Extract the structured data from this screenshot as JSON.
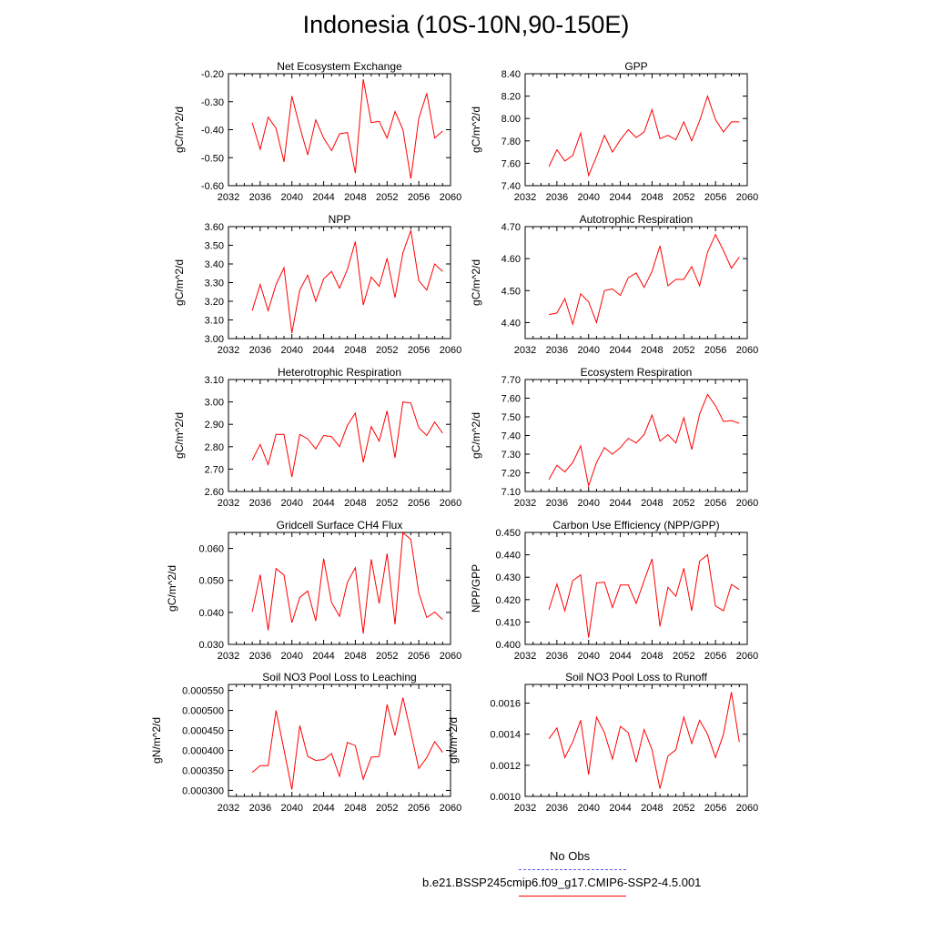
{
  "page": {
    "title": "Indonesia (10S-10N,90-150E)"
  },
  "legend": {
    "obs_label": "No Obs",
    "obs_color": "#5a5aff",
    "model_label": "b.e21.BSSP245cmip6.f09_g17.CMIP6-SSP2-4.5.001",
    "model_color": "#ff0000"
  },
  "chart_data": [
    {
      "type": "line",
      "title": "Net Ecosystem Exchange",
      "ylabel": "gC/m^2/d",
      "xlim": [
        2032,
        2060
      ],
      "ylim": [
        -0.6,
        -0.2
      ],
      "xticks": [
        "2032",
        "2036",
        "2040",
        "2044",
        "2048",
        "2052",
        "2056",
        "2060"
      ],
      "yticks": [
        "-0.60",
        "-0.50",
        "-0.40",
        "-0.30",
        "-0.20"
      ],
      "series": [
        {
          "color": "#ff0000",
          "x": [
            2035,
            2036,
            2037,
            2038,
            2039,
            2040,
            2041,
            2042,
            2043,
            2044,
            2045,
            2046,
            2047,
            2048,
            2049,
            2050,
            2051,
            2052,
            2053,
            2054,
            2055,
            2056,
            2057,
            2058,
            2059
          ],
          "values": [
            -0.375,
            -0.47,
            -0.355,
            -0.395,
            -0.515,
            -0.28,
            -0.39,
            -0.49,
            -0.365,
            -0.43,
            -0.475,
            -0.415,
            -0.41,
            -0.555,
            -0.22,
            -0.375,
            -0.37,
            -0.43,
            -0.335,
            -0.4,
            -0.575,
            -0.36,
            -0.27,
            -0.43,
            -0.405
          ]
        }
      ]
    },
    {
      "type": "line",
      "title": "GPP",
      "ylabel": "gC/m^2/d",
      "xlim": [
        2032,
        2060
      ],
      "ylim": [
        7.4,
        8.4
      ],
      "xticks": [
        "2032",
        "2036",
        "2040",
        "2044",
        "2048",
        "2052",
        "2056",
        "2060"
      ],
      "yticks": [
        "7.40",
        "7.60",
        "7.80",
        "8.00",
        "8.20",
        "8.40"
      ],
      "series": [
        {
          "color": "#ff0000",
          "x": [
            2035,
            2036,
            2037,
            2038,
            2039,
            2040,
            2041,
            2042,
            2043,
            2044,
            2045,
            2046,
            2047,
            2048,
            2049,
            2050,
            2051,
            2052,
            2053,
            2054,
            2055,
            2056,
            2057,
            2058,
            2059
          ],
          "values": [
            7.57,
            7.72,
            7.62,
            7.67,
            7.87,
            7.49,
            7.66,
            7.85,
            7.7,
            7.81,
            7.9,
            7.83,
            7.88,
            8.08,
            7.82,
            7.85,
            7.81,
            7.97,
            7.8,
            7.98,
            8.2,
            7.99,
            7.88,
            7.97,
            7.97
          ]
        }
      ]
    },
    {
      "type": "line",
      "title": "NPP",
      "ylabel": "gC/m^2/d",
      "xlim": [
        2032,
        2060
      ],
      "ylim": [
        3.0,
        3.6
      ],
      "xticks": [
        "2032",
        "2036",
        "2040",
        "2044",
        "2048",
        "2052",
        "2056",
        "2060"
      ],
      "yticks": [
        "3.00",
        "3.10",
        "3.20",
        "3.30",
        "3.40",
        "3.50",
        "3.60"
      ],
      "series": [
        {
          "color": "#ff0000",
          "x": [
            2035,
            2036,
            2037,
            2038,
            2039,
            2040,
            2041,
            2042,
            2043,
            2044,
            2045,
            2046,
            2047,
            2048,
            2049,
            2050,
            2051,
            2052,
            2053,
            2054,
            2055,
            2056,
            2057,
            2058,
            2059
          ],
          "values": [
            3.15,
            3.29,
            3.15,
            3.29,
            3.38,
            3.03,
            3.26,
            3.34,
            3.2,
            3.32,
            3.36,
            3.27,
            3.37,
            3.52,
            3.18,
            3.33,
            3.28,
            3.43,
            3.22,
            3.46,
            3.58,
            3.31,
            3.26,
            3.4,
            3.36
          ]
        }
      ]
    },
    {
      "type": "line",
      "title": "Autotrophic Respiration",
      "ylabel": "gC/m^2/d",
      "xlim": [
        2032,
        2060
      ],
      "ylim": [
        4.35,
        4.7
      ],
      "xticks": [
        "2032",
        "2036",
        "2040",
        "2044",
        "2048",
        "2052",
        "2056",
        "2060"
      ],
      "yticks": [
        "4.40",
        "4.50",
        "4.60",
        "4.70"
      ],
      "series": [
        {
          "color": "#ff0000",
          "x": [
            2035,
            2036,
            2037,
            2038,
            2039,
            2040,
            2041,
            2042,
            2043,
            2044,
            2045,
            2046,
            2047,
            2048,
            2049,
            2050,
            2051,
            2052,
            2053,
            2054,
            2055,
            2056,
            2057,
            2058,
            2059
          ],
          "values": [
            4.425,
            4.43,
            4.475,
            4.395,
            4.49,
            4.465,
            4.4,
            4.5,
            4.505,
            4.485,
            4.54,
            4.555,
            4.51,
            4.56,
            4.64,
            4.515,
            4.535,
            4.535,
            4.575,
            4.515,
            4.62,
            4.675,
            4.625,
            4.57,
            4.605
          ]
        }
      ]
    },
    {
      "type": "line",
      "title": "Heterotrophic Respiration",
      "ylabel": "gC/m^2/d",
      "xlim": [
        2032,
        2060
      ],
      "ylim": [
        2.6,
        3.1
      ],
      "xticks": [
        "2032",
        "2036",
        "2040",
        "2044",
        "2048",
        "2052",
        "2056",
        "2060"
      ],
      "yticks": [
        "2.60",
        "2.70",
        "2.80",
        "2.90",
        "3.00",
        "3.10"
      ],
      "series": [
        {
          "color": "#ff0000",
          "x": [
            2035,
            2036,
            2037,
            2038,
            2039,
            2040,
            2041,
            2042,
            2043,
            2044,
            2045,
            2046,
            2047,
            2048,
            2049,
            2050,
            2051,
            2052,
            2053,
            2054,
            2055,
            2056,
            2057,
            2058,
            2059
          ],
          "values": [
            2.74,
            2.81,
            2.72,
            2.855,
            2.855,
            2.665,
            2.855,
            2.835,
            2.79,
            2.85,
            2.845,
            2.8,
            2.895,
            2.95,
            2.73,
            2.89,
            2.825,
            2.96,
            2.75,
            3.0,
            2.995,
            2.885,
            2.85,
            2.91,
            2.86
          ]
        }
      ]
    },
    {
      "type": "line",
      "title": "Ecosystem Respiration",
      "ylabel": "gC/m^2/d",
      "xlim": [
        2032,
        2060
      ],
      "ylim": [
        7.1,
        7.7
      ],
      "xticks": [
        "2032",
        "2036",
        "2040",
        "2044",
        "2048",
        "2052",
        "2056",
        "2060"
      ],
      "yticks": [
        "7.10",
        "7.20",
        "7.30",
        "7.40",
        "7.50",
        "7.60",
        "7.70"
      ],
      "series": [
        {
          "color": "#ff0000",
          "x": [
            2035,
            2036,
            2037,
            2038,
            2039,
            2040,
            2041,
            2042,
            2043,
            2044,
            2045,
            2046,
            2047,
            2048,
            2049,
            2050,
            2051,
            2052,
            2053,
            2054,
            2055,
            2056,
            2057,
            2058,
            2059
          ],
          "values": [
            7.165,
            7.24,
            7.205,
            7.255,
            7.345,
            7.13,
            7.255,
            7.335,
            7.3,
            7.335,
            7.385,
            7.36,
            7.405,
            7.51,
            7.37,
            7.405,
            7.36,
            7.495,
            7.325,
            7.515,
            7.62,
            7.56,
            7.475,
            7.48,
            7.465
          ]
        }
      ]
    },
    {
      "type": "line",
      "title": "Gridcell Surface CH4 Flux",
      "ylabel": "gC/m^2/d",
      "xlim": [
        2032,
        2060
      ],
      "ylim": [
        0.03,
        0.065
      ],
      "xticks": [
        "2032",
        "2036",
        "2040",
        "2044",
        "2048",
        "2052",
        "2056",
        "2060"
      ],
      "yticks": [
        "0.030",
        "0.040",
        "0.050",
        "0.060"
      ],
      "series": [
        {
          "color": "#ff0000",
          "x": [
            2035,
            2036,
            2037,
            2038,
            2039,
            2040,
            2041,
            2042,
            2043,
            2044,
            2045,
            2046,
            2047,
            2048,
            2049,
            2050,
            2051,
            2052,
            2053,
            2054,
            2055,
            2056,
            2057,
            2058,
            2059
          ],
          "values": [
            0.0402,
            0.0518,
            0.0344,
            0.0537,
            0.0517,
            0.0368,
            0.0447,
            0.0467,
            0.0373,
            0.0568,
            0.0431,
            0.0388,
            0.0494,
            0.054,
            0.0334,
            0.0566,
            0.0428,
            0.0584,
            0.0363,
            0.065,
            0.0628,
            0.0461,
            0.0384,
            0.0401,
            0.0378
          ]
        }
      ]
    },
    {
      "type": "line",
      "title": "Carbon Use Efficiency (NPP/GPP)",
      "ylabel": "NPP/GPP",
      "xlim": [
        2032,
        2060
      ],
      "ylim": [
        0.4,
        0.45
      ],
      "xticks": [
        "2032",
        "2036",
        "2040",
        "2044",
        "2048",
        "2052",
        "2056",
        "2060"
      ],
      "yticks": [
        "0.400",
        "0.410",
        "0.420",
        "0.430",
        "0.440",
        "0.450"
      ],
      "series": [
        {
          "color": "#ff0000",
          "x": [
            2035,
            2036,
            2037,
            2038,
            2039,
            2040,
            2041,
            2042,
            2043,
            2044,
            2045,
            2046,
            2047,
            2048,
            2049,
            2050,
            2051,
            2052,
            2053,
            2054,
            2055,
            2056,
            2057,
            2058,
            2059
          ],
          "values": [
            0.4155,
            0.427,
            0.415,
            0.4285,
            0.431,
            0.403,
            0.4275,
            0.4278,
            0.4165,
            0.4265,
            0.4265,
            0.4183,
            0.4285,
            0.4382,
            0.408,
            0.4255,
            0.4215,
            0.434,
            0.415,
            0.4372,
            0.44,
            0.4172,
            0.415,
            0.4268,
            0.4245
          ]
        }
      ]
    },
    {
      "type": "line",
      "title": "Soil NO3 Pool Loss to Leaching",
      "ylabel": "gN/m^2/d",
      "xlim": [
        2032,
        2060
      ],
      "ylim": [
        0.000285,
        0.000565
      ],
      "xticks": [
        "2032",
        "2036",
        "2040",
        "2044",
        "2048",
        "2052",
        "2056",
        "2060"
      ],
      "yticks": [
        "0.000300",
        "0.000350",
        "0.000400",
        "0.000450",
        "0.000500",
        "0.000550"
      ],
      "series": [
        {
          "color": "#ff0000",
          "x": [
            2035,
            2036,
            2037,
            2038,
            2039,
            2040,
            2041,
            2042,
            2043,
            2044,
            2045,
            2046,
            2047,
            2048,
            2049,
            2050,
            2051,
            2052,
            2053,
            2054,
            2055,
            2056,
            2057,
            2058,
            2059
          ],
          "values": [
            0.000345,
            0.000362,
            0.000362,
            0.0005,
            0.000402,
            0.000302,
            0.000462,
            0.000385,
            0.000375,
            0.000377,
            0.000392,
            0.000335,
            0.00042,
            0.000412,
            0.000328,
            0.000383,
            0.000385,
            0.000515,
            0.000437,
            0.000532,
            0.000445,
            0.000355,
            0.000382,
            0.000422,
            0.000395
          ]
        }
      ]
    },
    {
      "type": "line",
      "title": "Soil NO3 Pool Loss to Runoff",
      "ylabel": "gN/m^2/d",
      "xlim": [
        2032,
        2060
      ],
      "ylim": [
        0.001,
        0.00172
      ],
      "xticks": [
        "2032",
        "2036",
        "2040",
        "2044",
        "2048",
        "2052",
        "2056",
        "2060"
      ],
      "yticks": [
        "0.0010",
        "0.0012",
        "0.0014",
        "0.0016"
      ],
      "series": [
        {
          "color": "#ff0000",
          "x": [
            2035,
            2036,
            2037,
            2038,
            2039,
            2040,
            2041,
            2042,
            2043,
            2044,
            2045,
            2046,
            2047,
            2048,
            2049,
            2050,
            2051,
            2052,
            2053,
            2054,
            2055,
            2056,
            2057,
            2058,
            2059
          ],
          "values": [
            0.00137,
            0.00144,
            0.00125,
            0.00135,
            0.00149,
            0.00114,
            0.00151,
            0.00141,
            0.00124,
            0.00145,
            0.00141,
            0.00122,
            0.00143,
            0.0013,
            0.00105,
            0.00126,
            0.0013,
            0.00151,
            0.00134,
            0.00149,
            0.0014,
            0.00125,
            0.0014,
            0.00167,
            0.00135
          ]
        }
      ]
    }
  ]
}
